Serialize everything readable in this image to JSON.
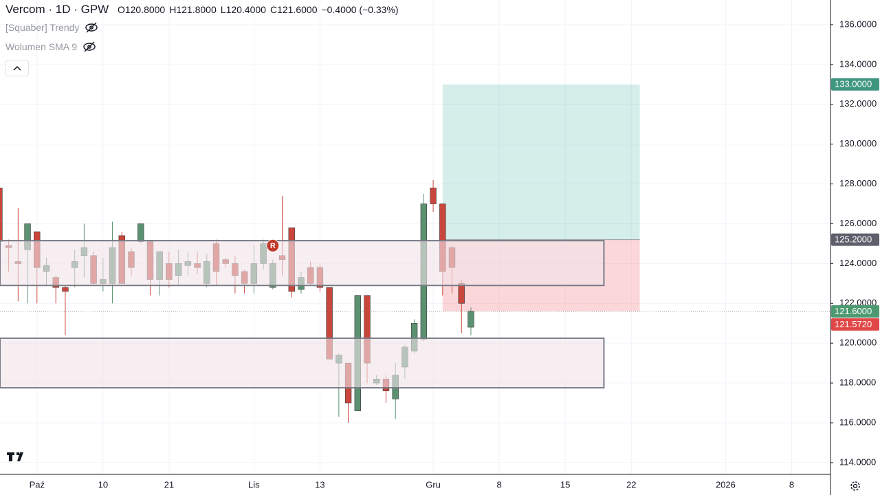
{
  "chart_data": {
    "type": "candlestick",
    "header": {
      "symbol": "Vercom",
      "interval": "1D",
      "exchange": "GPW",
      "ohlc": [
        {
          "label": "O",
          "value": "120.8000"
        },
        {
          "label": "H",
          "value": "121.8000"
        },
        {
          "label": "L",
          "value": "120.4000"
        },
        {
          "label": "C",
          "value": "121.6000"
        }
      ],
      "change": "−0.4000 (−0.33%)"
    },
    "indicators": [
      "[Squaber] Trendy",
      "Wolumen SMA 9"
    ],
    "x": [
      -46,
      -45,
      -44,
      -43,
      -42,
      -41,
      -40,
      -39,
      -38,
      -37,
      -36,
      -35,
      -34,
      -33,
      -32,
      -31,
      -30,
      -29,
      -28,
      -27,
      -26,
      -25,
      -24,
      -23,
      -22,
      -21,
      -20,
      -19,
      -18,
      -17,
      -16,
      -15,
      -14,
      -13,
      -12,
      -11,
      -10,
      -9,
      -8,
      -7,
      -6,
      -5,
      -4,
      -3,
      -2,
      -1,
      0,
      1,
      2,
      3,
      4
    ],
    "open": [
      127.8,
      124.9,
      124.1,
      124.7,
      125.6,
      123.6,
      123.3,
      122.8,
      123.8,
      124.4,
      124.4,
      123.0,
      123.0,
      125.4,
      124.6,
      125.1,
      125.1,
      123.2,
      124.0,
      123.4,
      123.9,
      124.0,
      123.0,
      125.0,
      124.2,
      124.0,
      123.6,
      123.0,
      124.0,
      122.8,
      124.4,
      125.8,
      122.7,
      123.8,
      123.8,
      122.8,
      119.0,
      119.0,
      116.6,
      122.4,
      118.0,
      118.2,
      117.2,
      118.8,
      119.6,
      120.2,
      127.8,
      127.0,
      124.8,
      123.0,
      120.8
    ],
    "high": [
      127.8,
      125.2,
      126.8,
      126.0,
      125.6,
      124.3,
      123.4,
      122.9,
      124.7,
      126.0,
      124.6,
      124.3,
      126.1,
      125.6,
      124.8,
      126.0,
      125.1,
      124.6,
      124.6,
      124.7,
      124.6,
      124.6,
      124.5,
      125.2,
      124.3,
      124.4,
      123.7,
      124.9,
      125.2,
      124.2,
      127.4,
      125.8,
      123.6,
      124.1,
      124.0,
      122.8,
      119.5,
      119.0,
      122.4,
      122.4,
      118.4,
      118.4,
      119.0,
      119.9,
      121.2,
      127.5,
      128.2,
      127.0,
      124.9,
      123.2,
      121.8
    ],
    "low": [
      124.8,
      123.6,
      122.1,
      122.0,
      122.0,
      122.9,
      122.0,
      120.4,
      122.8,
      123.3,
      122.9,
      122.6,
      122.0,
      123.0,
      123.4,
      125.0,
      122.4,
      122.4,
      122.8,
      122.9,
      123.4,
      123.5,
      122.8,
      122.9,
      123.8,
      122.5,
      122.5,
      122.5,
      123.7,
      122.7,
      123.4,
      122.3,
      122.5,
      122.9,
      122.6,
      119.2,
      116.3,
      116.0,
      116.6,
      118.0,
      117.9,
      117.0,
      116.2,
      118.2,
      119.5,
      120.1,
      126.6,
      122.4,
      122.5,
      120.5,
      120.4
    ],
    "close": [
      125.1,
      124.8,
      124.0,
      126.0,
      123.8,
      123.9,
      122.8,
      122.6,
      124.1,
      124.8,
      123.0,
      123.2,
      124.8,
      123.0,
      123.8,
      126.0,
      123.2,
      124.6,
      123.2,
      124.0,
      124.1,
      123.8,
      124.1,
      123.6,
      124.0,
      123.4,
      123.0,
      124.0,
      125.0,
      124.0,
      124.2,
      122.6,
      123.3,
      123.0,
      122.8,
      119.2,
      119.4,
      117.0,
      122.4,
      119.0,
      118.2,
      117.6,
      118.4,
      119.8,
      121.0,
      127.0,
      127.0,
      123.6,
      123.8,
      122.0,
      121.6
    ],
    "up_color": "#5b9171",
    "down_color": "#c9463d",
    "xlim": [
      -45.92,
      42.12
    ],
    "xticks": [
      {
        "value": -42,
        "label": "Paź"
      },
      {
        "value": -35,
        "label": "10"
      },
      {
        "value": -28,
        "label": "21"
      },
      {
        "value": -19,
        "label": "Lis"
      },
      {
        "value": -12,
        "label": "13"
      },
      {
        "value": 0,
        "label": "Gru"
      },
      {
        "value": 7,
        "label": "8"
      },
      {
        "value": 14,
        "label": "15"
      },
      {
        "value": 21,
        "label": "22"
      },
      {
        "value": 31,
        "label": "2026"
      },
      {
        "value": 38,
        "label": "8"
      }
    ],
    "ylim": [
      113.41,
      137.24
    ],
    "yticks": [
      {
        "value": 114,
        "label": "114.0000"
      },
      {
        "value": 116,
        "label": "116.0000"
      },
      {
        "value": 118,
        "label": "118.0000"
      },
      {
        "value": 120,
        "label": "120.0000"
      },
      {
        "value": 122,
        "label": "122.0000"
      },
      {
        "value": 124,
        "label": "124.0000"
      },
      {
        "value": 126,
        "label": "126.0000"
      },
      {
        "value": 128,
        "label": "128.0000"
      },
      {
        "value": 130,
        "label": "130.0000"
      },
      {
        "value": 132,
        "label": "132.0000"
      },
      {
        "value": 134,
        "label": "134.0000"
      },
      {
        "value": 136,
        "label": "136.0000"
      }
    ],
    "grid": true,
    "zones": [
      {
        "x": [
          -46,
          18.1
        ],
        "y": [
          122.9,
          125.15
        ]
      },
      {
        "x": [
          -46,
          18.1
        ],
        "y": [
          117.76,
          120.25
        ]
      }
    ],
    "position": {
      "x": [
        1,
        21.9
      ],
      "target": 133,
      "entry": 125.2,
      "stop": 121.6
    },
    "last_price": 121.6,
    "markers": [
      {
        "x": -17,
        "y": 124.9,
        "label": "R"
      }
    ],
    "price_labels": [
      {
        "value": 133,
        "label": "133.0000",
        "color": "#3f9680"
      },
      {
        "value": 125.2,
        "label": "125.2000",
        "color": "#5d606b"
      },
      {
        "value": 121.6,
        "label": "121.6000",
        "color": "#4d9a72"
      },
      {
        "value": 121.572,
        "label": "121.5720",
        "color": "#e04848"
      }
    ]
  }
}
